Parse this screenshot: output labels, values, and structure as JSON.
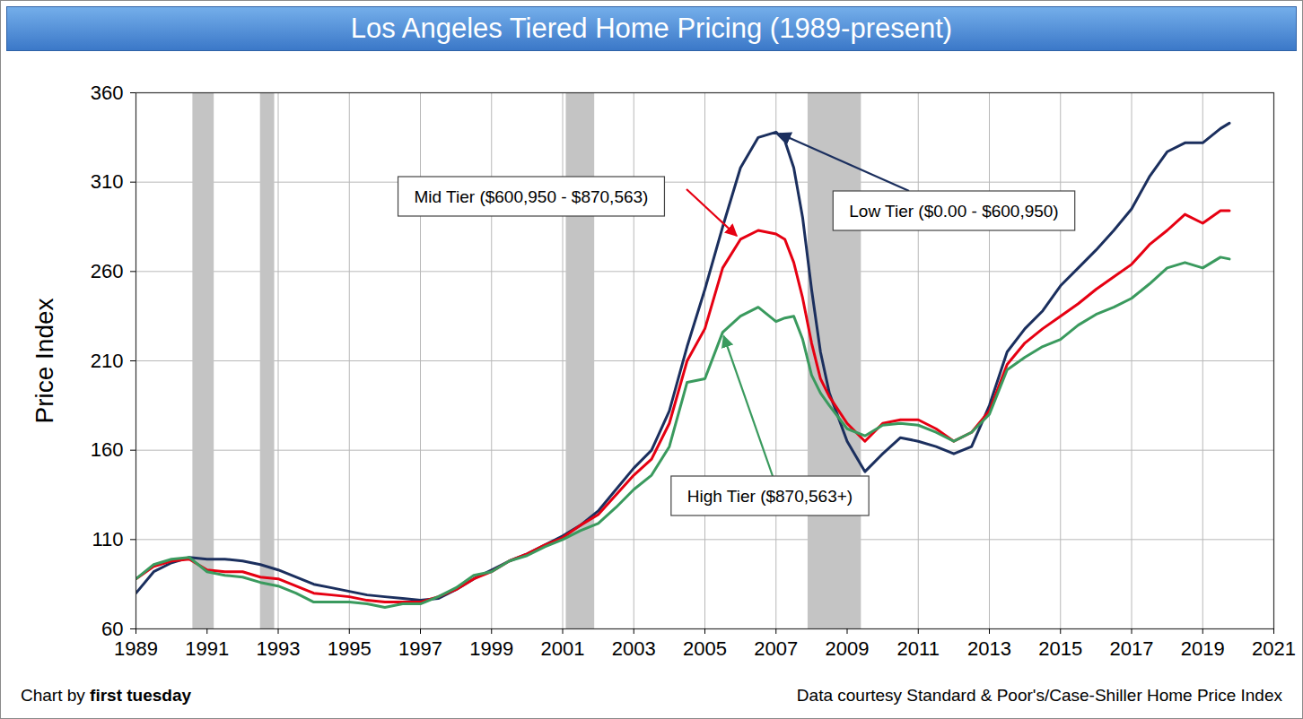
{
  "chart_data": {
    "type": "line",
    "title": "Los Angeles Tiered Home Pricing (1989-present)",
    "y_label": "Price Index",
    "x": [
      1989.0,
      1989.5,
      1990.0,
      1990.5,
      1991.0,
      1991.5,
      1992.0,
      1992.5,
      1993.0,
      1993.5,
      1994.0,
      1994.5,
      1995.0,
      1995.5,
      1996.0,
      1996.5,
      1997.0,
      1997.5,
      1998.0,
      1998.5,
      1999.0,
      1999.5,
      2000.0,
      2000.5,
      2001.0,
      2001.5,
      2002.0,
      2002.5,
      2003.0,
      2003.5,
      2004.0,
      2004.5,
      2005.0,
      2005.5,
      2006.0,
      2006.5,
      2007.0,
      2007.25,
      2007.5,
      2007.75,
      2008.0,
      2008.25,
      2008.5,
      2009.0,
      2009.5,
      2010.0,
      2010.5,
      2011.0,
      2011.5,
      2012.0,
      2012.5,
      2013.0,
      2013.5,
      2014.0,
      2014.5,
      2015.0,
      2015.5,
      2016.0,
      2016.5,
      2017.0,
      2017.5,
      2018.0,
      2018.5,
      2019.0,
      2019.5,
      2019.75
    ],
    "series": [
      {
        "name": "Low Tier ($0.00 - $600,950)",
        "color": "#1b2f5e",
        "values": [
          80,
          92,
          97,
          100,
          99,
          99,
          98,
          96,
          93,
          89,
          85,
          83,
          81,
          79,
          78,
          77,
          76,
          77,
          82,
          88,
          93,
          98,
          102,
          107,
          112,
          118,
          126,
          138,
          150,
          160,
          182,
          218,
          250,
          285,
          318,
          335,
          338,
          333,
          318,
          290,
          250,
          215,
          192,
          165,
          148,
          158,
          167,
          165,
          162,
          158,
          162,
          185,
          215,
          228,
          238,
          252,
          262,
          272,
          283,
          295,
          313,
          327,
          332,
          332,
          340,
          343
        ]
      },
      {
        "name": "Mid Tier ($600,950 - $870,563)",
        "color": "#e60012",
        "values": [
          88,
          95,
          98,
          99,
          93,
          92,
          92,
          89,
          88,
          84,
          80,
          79,
          78,
          76,
          75,
          75,
          75,
          78,
          82,
          88,
          92,
          98,
          102,
          107,
          111,
          118,
          124,
          135,
          146,
          155,
          175,
          210,
          228,
          262,
          278,
          283,
          281,
          278,
          265,
          245,
          220,
          200,
          190,
          175,
          165,
          175,
          177,
          177,
          172,
          165,
          170,
          182,
          208,
          220,
          228,
          235,
          242,
          250,
          257,
          264,
          275,
          283,
          292,
          287,
          294,
          294
        ]
      },
      {
        "name": "High Tier ($870,563+)",
        "color": "#3a9a5e",
        "values": [
          88,
          96,
          99,
          100,
          92,
          90,
          89,
          86,
          84,
          80,
          75,
          75,
          75,
          74,
          72,
          74,
          74,
          78,
          83,
          90,
          92,
          98,
          101,
          106,
          110,
          115,
          119,
          128,
          138,
          146,
          162,
          198,
          200,
          226,
          235,
          240,
          232,
          234,
          235,
          222,
          202,
          192,
          185,
          172,
          168,
          174,
          175,
          174,
          170,
          165,
          170,
          180,
          205,
          212,
          218,
          222,
          230,
          236,
          240,
          245,
          253,
          262,
          265,
          262,
          268,
          267
        ]
      }
    ],
    "xlim": [
      1989,
      2021
    ],
    "ylim": [
      60,
      360
    ],
    "xticks": [
      1989,
      1991,
      1993,
      1995,
      1997,
      1999,
      2001,
      2003,
      2005,
      2007,
      2009,
      2011,
      2013,
      2015,
      2017,
      2019,
      2021
    ],
    "yticks": [
      60,
      110,
      160,
      210,
      260,
      310,
      360
    ],
    "grid": true,
    "recessions": [
      {
        "start": 1990.6,
        "end": 1991.2
      },
      {
        "start": 1992.5,
        "end": 1992.9
      },
      {
        "start": 2001.1,
        "end": 2001.9
      },
      {
        "start": 2007.9,
        "end": 2009.4
      }
    ],
    "credit": {
      "text": "Chart by",
      "bold": "first tuesday"
    },
    "source": "Data courtesy Standard & Poor's/Case-Shiller Home Price Index"
  }
}
